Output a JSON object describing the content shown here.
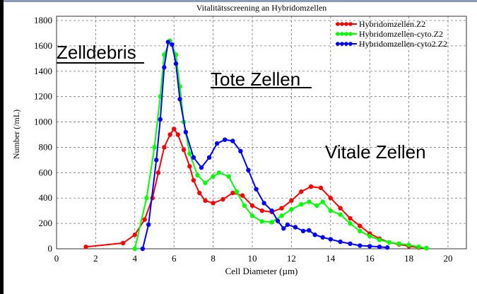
{
  "chart_data": {
    "type": "line",
    "title": "Vitalitätsscreening an Hybridomzellen",
    "xlabel": "Cell Diameter (µm)",
    "ylabel": "Number (/mL)",
    "xlim": [
      0,
      21
    ],
    "ylim": [
      0,
      1800
    ],
    "x_ticks": [
      "0",
      "2",
      "4",
      "6",
      "8",
      "10",
      "12",
      "14",
      "16",
      "18",
      "20"
    ],
    "y_ticks": [
      "0",
      "200",
      "400",
      "600",
      "800",
      "1000",
      "1200",
      "1400",
      "1600",
      "1800"
    ],
    "grid": true,
    "legend_position": "top-right",
    "annotations": [
      "Zelldebris",
      "Tote Zellen",
      "Vitale Zellen"
    ],
    "series": [
      {
        "name": "Hybridomzellen.Z2",
        "color": "#ff0000",
        "x": [
          1.5,
          3.4,
          4.0,
          4.5,
          4.9,
          5.2,
          5.5,
          5.8,
          6.0,
          6.2,
          6.5,
          6.8,
          7.0,
          7.3,
          7.6,
          8.0,
          8.5,
          9.0,
          9.5,
          10.0,
          10.5,
          11.0,
          11.5,
          12.0,
          12.5,
          13.0,
          13.5,
          14.0,
          14.5,
          15.0,
          15.5,
          16.0,
          16.5,
          17.0,
          17.5,
          18.0,
          18.5,
          18.9
        ],
        "y": [
          15,
          45,
          110,
          230,
          400,
          600,
          800,
          900,
          945,
          900,
          780,
          650,
          540,
          440,
          380,
          360,
          390,
          440,
          420,
          340,
          300,
          290,
          320,
          380,
          450,
          490,
          480,
          400,
          320,
          240,
          180,
          120,
          80,
          50,
          35,
          20,
          10,
          5
        ]
      },
      {
        "name": "Hybridomzellen-cyto.Z2",
        "color": "#00ff00",
        "x": [
          4.0,
          4.6,
          5.0,
          5.3,
          5.5,
          5.8,
          6.1,
          6.3,
          6.5,
          6.8,
          7.2,
          7.6,
          8.0,
          8.3,
          8.8,
          9.2,
          9.6,
          10.0,
          10.5,
          11.0,
          11.5,
          12.0,
          12.5,
          12.9,
          13.3,
          13.6,
          14.0,
          14.5,
          15.0,
          15.5,
          16.0,
          16.5,
          17.0,
          17.5,
          18.0,
          18.5,
          18.9
        ],
        "y": [
          0,
          400,
          800,
          1200,
          1530,
          1640,
          1530,
          1280,
          1000,
          750,
          580,
          520,
          570,
          600,
          570,
          450,
          340,
          260,
          215,
          210,
          260,
          310,
          350,
          370,
          340,
          370,
          300,
          270,
          200,
          140,
          100,
          70,
          50,
          40,
          30,
          15,
          5
        ]
      },
      {
        "name": "Hybridomzellen-cyto2.Z2",
        "color": "#0000ff",
        "x": [
          4.4,
          4.7,
          5.1,
          5.3,
          5.5,
          5.7,
          5.9,
          6.1,
          6.3,
          6.6,
          7.0,
          7.4,
          7.8,
          8.2,
          8.6,
          9.0,
          9.4,
          9.8,
          10.2,
          10.6,
          11.0,
          11.3,
          11.6,
          11.8,
          12.2,
          12.6,
          12.9,
          13.2,
          13.6,
          14.0,
          14.5,
          15.0,
          15.5,
          16.0,
          16.5,
          16.9
        ],
        "y": [
          0,
          190,
          700,
          1020,
          1430,
          1630,
          1610,
          1460,
          1180,
          920,
          720,
          640,
          720,
          830,
          860,
          850,
          770,
          620,
          470,
          360,
          300,
          220,
          160,
          190,
          170,
          140,
          145,
          110,
          90,
          75,
          55,
          40,
          25,
          20,
          15,
          10
        ]
      }
    ]
  }
}
